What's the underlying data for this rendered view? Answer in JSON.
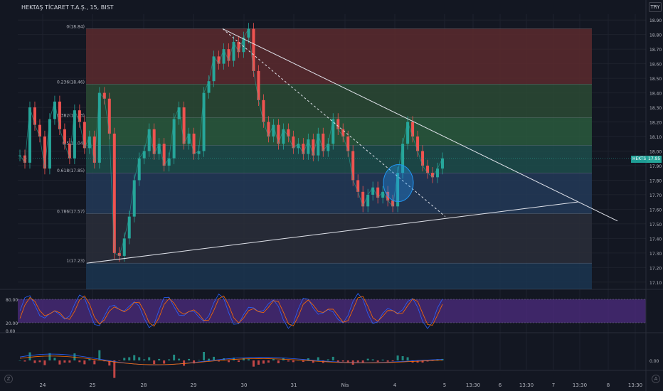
{
  "header": {
    "symbol_title": "HEKTAŞ TİCARET T.A.Ş., 15, BIST",
    "currency_badge": "TRY"
  },
  "price_tag": {
    "ticker": "HEKTS",
    "price": "17.95"
  },
  "corner_buttons": {
    "left_top": "Z",
    "left_bottom": "A"
  },
  "chart_data": [
    {
      "type": "candlestick",
      "x_tick_labels": [
        "24",
        "25",
        "28",
        "29",
        "30",
        "31",
        "Nis",
        "4",
        "5",
        "13:30",
        "6",
        "13:30",
        "7",
        "13:30",
        "8",
        "13:30"
      ],
      "y_tick_labels": [
        "18.90",
        "18.80",
        "18.70",
        "18.60",
        "18.50",
        "18.40",
        "18.30",
        "18.20",
        "18.10",
        "18.00",
        "17.90",
        "17.80",
        "17.70",
        "17.60",
        "17.50",
        "17.40",
        "17.30",
        "17.20",
        "17.10"
      ],
      "ylim": [
        17.06,
        18.94
      ],
      "last_price": 17.95,
      "fibonacci_levels": [
        {
          "label": "0(18.84)",
          "ratio": 0,
          "price": 18.84
        },
        {
          "label": "0.236(18.46)",
          "ratio": 0.236,
          "price": 18.46
        },
        {
          "label": "0.382(18.23)",
          "ratio": 0.382,
          "price": 18.23
        },
        {
          "label": "0.5(18.04)",
          "ratio": 0.5,
          "price": 18.04
        },
        {
          "label": "0.618(17.85)",
          "ratio": 0.618,
          "price": 17.85
        },
        {
          "label": "0.786(17.57)",
          "ratio": 0.786,
          "price": 17.57
        },
        {
          "label": "1(17.23)",
          "ratio": 1,
          "price": 17.23
        }
      ],
      "fib_zone_colors": [
        "#5c2a2e",
        "#2c4a34",
        "#2a5a3d",
        "#1d4e4b",
        "#233a58",
        "#2a2e39",
        "#1b3550"
      ],
      "fib_zone_bottom_price": 17.06,
      "candles_close": [
        17.97,
        17.92,
        18.3,
        18.18,
        18.1,
        17.88,
        18.22,
        18.34,
        18.15,
        18.05,
        17.95,
        18.28,
        18.2,
        18.02,
        18.1,
        17.92,
        18.4,
        18.36,
        18.12,
        17.3,
        17.28,
        17.4,
        17.55,
        17.8,
        17.95,
        18.0,
        18.15,
        17.98,
        18.05,
        17.9,
        17.95,
        18.22,
        18.3,
        18.05,
        18.12,
        17.98,
        18.0,
        18.4,
        18.48,
        18.65,
        18.6,
        18.7,
        18.62,
        18.75,
        18.68,
        18.78,
        18.84,
        18.55,
        18.35,
        18.2,
        18.1,
        18.18,
        18.05,
        18.15,
        18.1,
        18.02,
        18.05,
        17.98,
        18.08,
        17.97,
        18.12,
        18.0,
        18.05,
        18.22,
        18.15,
        18.1,
        18.0,
        17.8,
        17.72,
        17.62,
        17.7,
        17.75,
        17.68,
        17.72,
        17.66,
        17.62,
        17.85,
        18.05,
        18.2,
        18.1,
        18.0,
        17.9,
        17.85,
        17.82,
        17.88,
        17.95
      ],
      "triangle_lines": [
        {
          "from": [
            18.84,
            "29"
          ],
          "to": [
            17.52,
            "13:30"
          ],
          "style": "solid"
        },
        {
          "from": [
            17.23,
            "25"
          ],
          "to": [
            17.65,
            "13:30"
          ],
          "style": "solid"
        },
        {
          "from": [
            18.84,
            "29"
          ],
          "to": [
            17.55,
            "5"
          ],
          "style": "dashed"
        }
      ]
    },
    {
      "type": "line",
      "name": "stochastic",
      "y_tick_labels": [
        "80.00",
        "20.00",
        "0.00"
      ],
      "ylim": [
        0,
        100
      ],
      "upper_band": 80,
      "lower_band": 20
    },
    {
      "type": "bar",
      "name": "macd",
      "y_tick_labels": [
        "0.00"
      ]
    }
  ],
  "colors": {
    "up": "#26a69a",
    "down": "#ef5350",
    "grid": "#1e222d",
    "stoch_fill": "#4a2a7a",
    "macd_line": "#2962ff",
    "signal_line": "#ff6d00",
    "triangle": "#e0e3eb",
    "highlight_ellipse": "#2196f3"
  }
}
